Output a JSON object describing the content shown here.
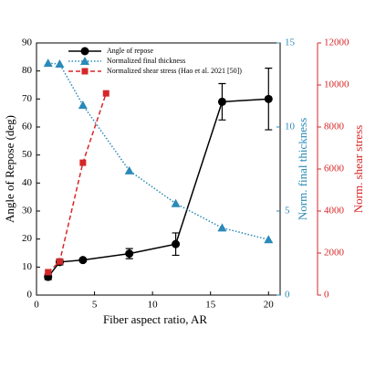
{
  "chart_data": {
    "type": "line",
    "xlabel": "Fiber aspect ratio, AR",
    "ylabel": "Angle of Repose (deg)",
    "y2label": "Norm. final thickness",
    "y3label": "Norm. shear stress",
    "xlim": [
      0,
      21
    ],
    "xticks": [
      0,
      5,
      10,
      15,
      20
    ],
    "ylim": [
      0,
      90
    ],
    "yticks": [
      0,
      10,
      20,
      30,
      40,
      50,
      60,
      70,
      80,
      90
    ],
    "y2lim": [
      0,
      15
    ],
    "y2ticks": [
      0,
      5,
      10,
      15
    ],
    "y3lim": [
      0,
      12000
    ],
    "y3ticks": [
      0,
      2000,
      4000,
      6000,
      8000,
      10000,
      12000
    ],
    "series": [
      {
        "name": "Angle of repose",
        "color": "#000000",
        "style": "solid",
        "marker": "circle",
        "axis": "y",
        "x": [
          1,
          2,
          4,
          8,
          12,
          16,
          20
        ],
        "values": [
          6.5,
          11.8,
          12.5,
          14.8,
          18.2,
          69,
          70
        ],
        "errors": [
          1,
          1,
          0.5,
          1.8,
          4,
          6.5,
          11
        ]
      },
      {
        "name": "Normalized final thickness",
        "color": "#2a8ab8",
        "style": "dotted",
        "marker": "triangle",
        "axis": "y2",
        "x": [
          1,
          2,
          4,
          8,
          12,
          16,
          20
        ],
        "values": [
          13.8,
          13.75,
          11.3,
          7.4,
          5.45,
          4.0,
          3.3
        ]
      },
      {
        "name": "Normalized shear stress (Hao et al. 2021 [50])",
        "color": "#d62728",
        "style": "dashed",
        "marker": "square",
        "axis": "y3",
        "x": [
          1,
          2,
          4,
          6
        ],
        "values": [
          1090,
          1600,
          6300,
          9600
        ]
      }
    ]
  }
}
